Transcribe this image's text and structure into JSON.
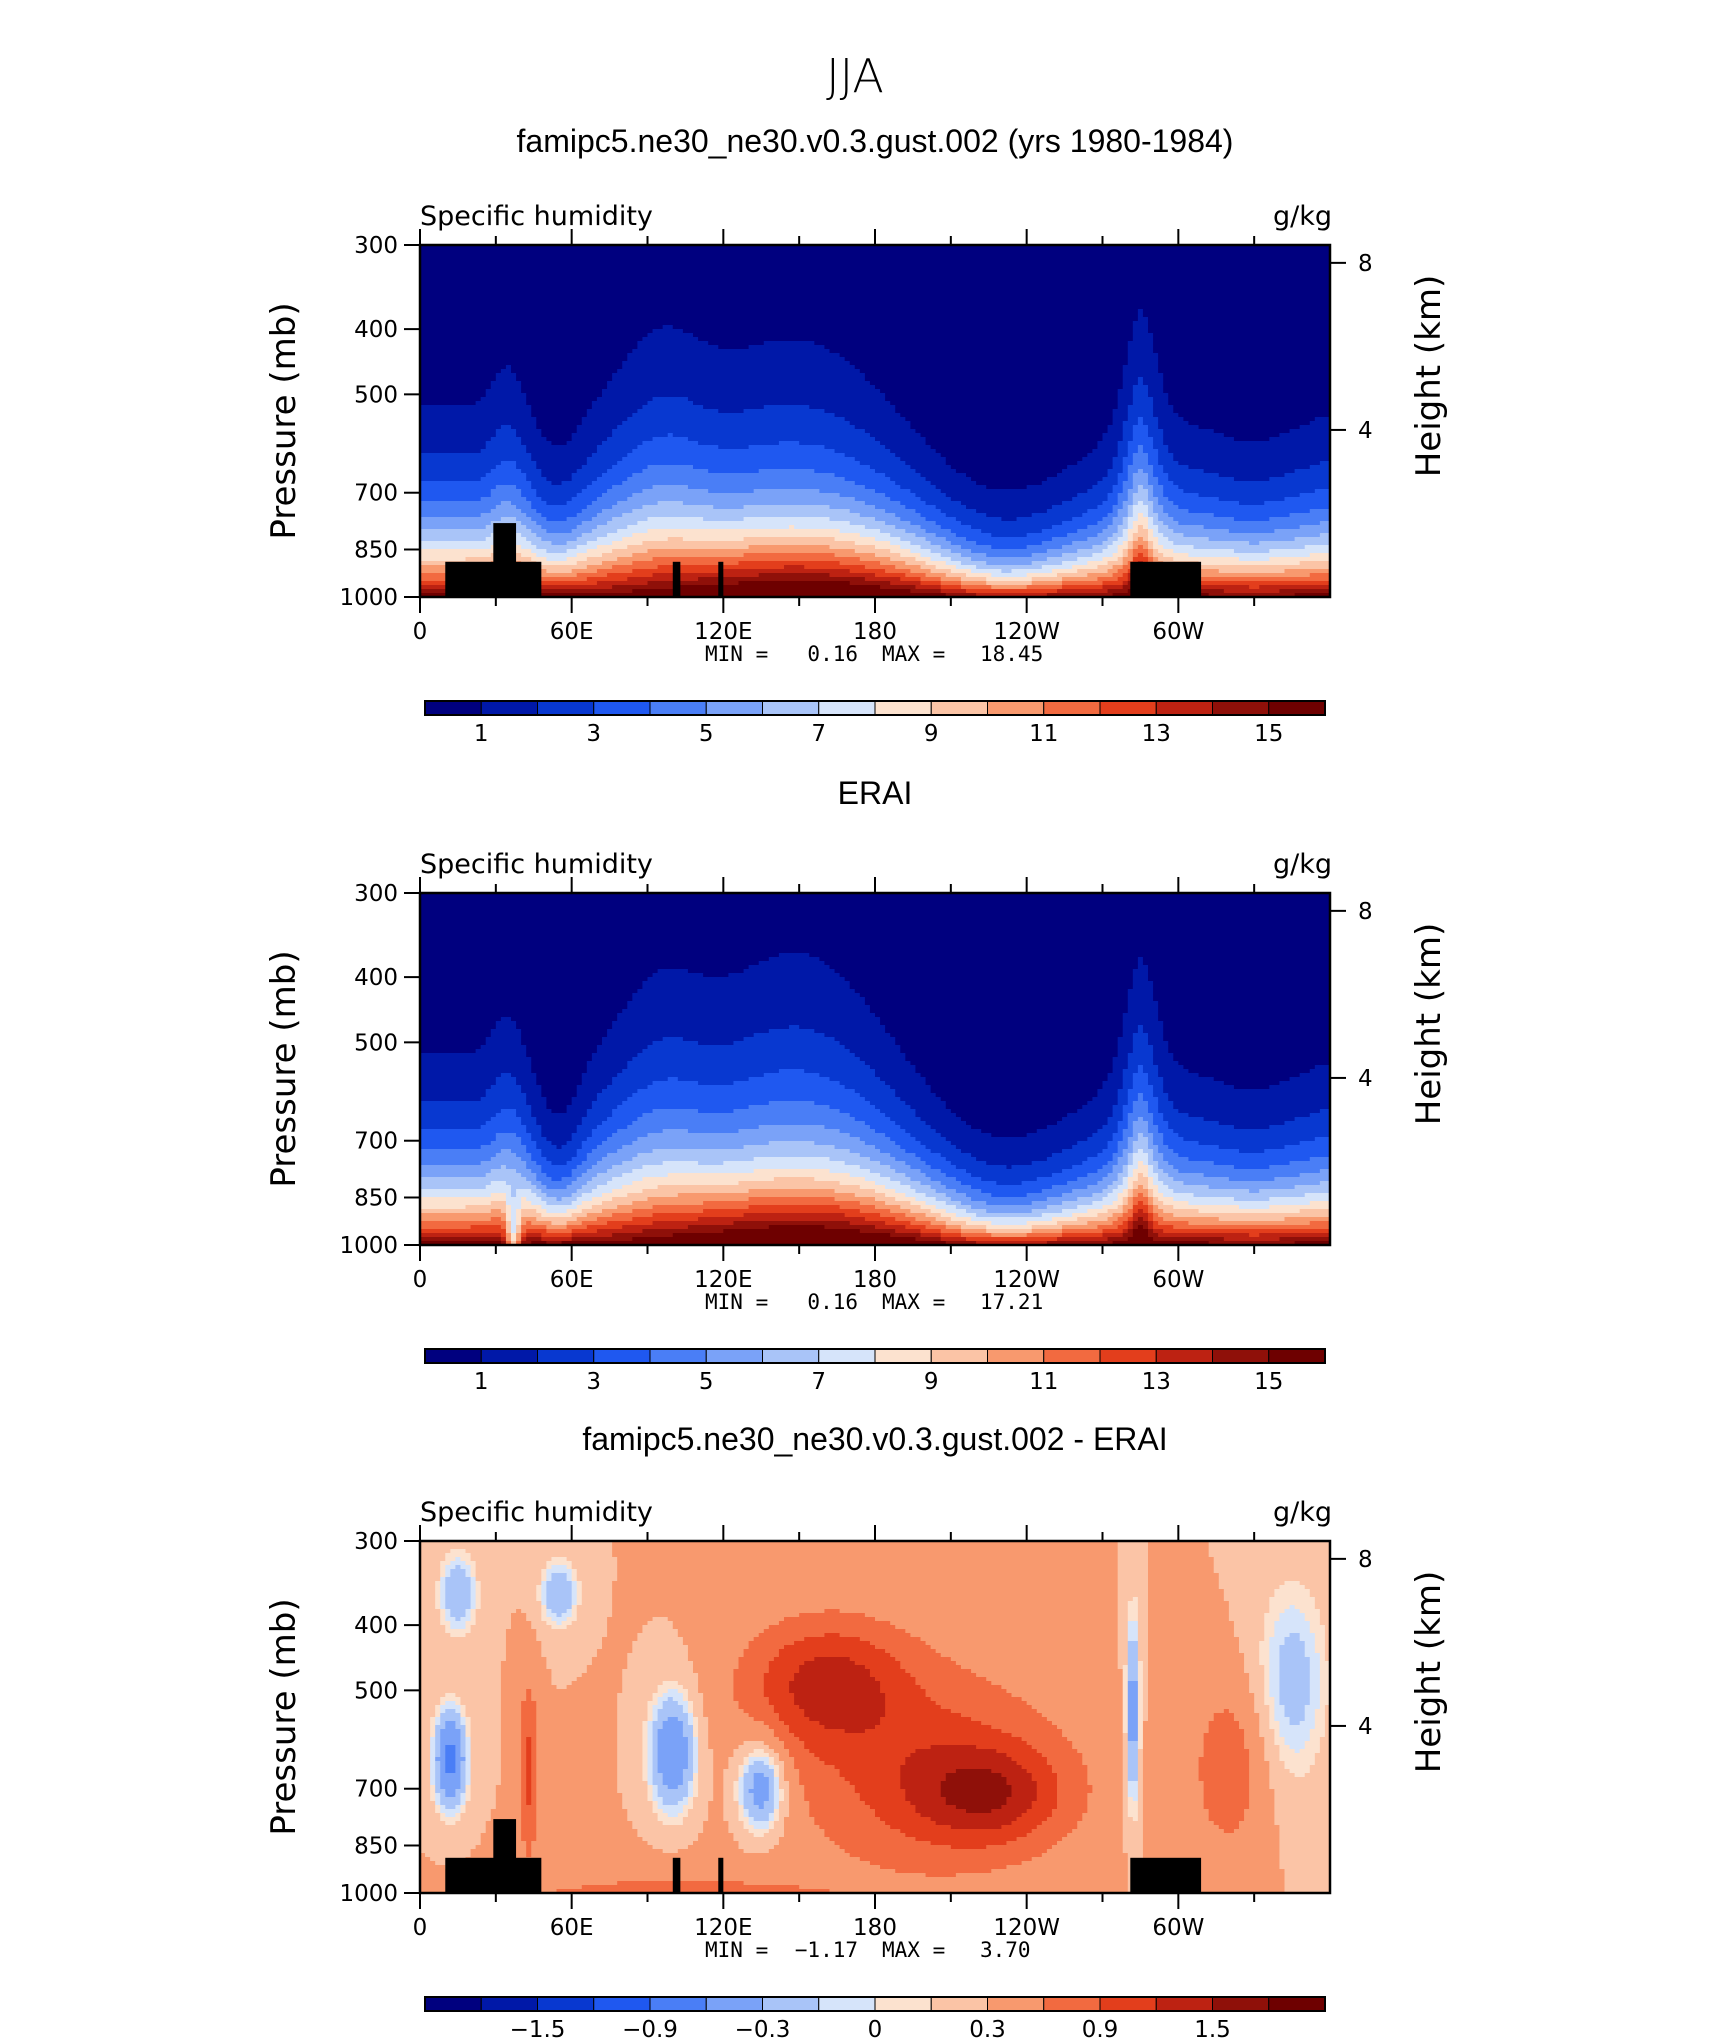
{
  "figure_title": "JJA",
  "chart_data": [
    {
      "type": "heatmap",
      "title": "famipc5.ne30_ne30.v0.3.gust.002 (yrs 1980-1984)",
      "left_string": "Specific humidity",
      "right_string": "g/kg",
      "ylabel": "Pressure (mb)",
      "ylabel_right": "Height (km)",
      "yticks": [
        "300",
        "400",
        "500",
        "700",
        "850",
        "1000"
      ],
      "yticks_right": [
        "8",
        "4"
      ],
      "xticks": [
        "0",
        "60E",
        "120E",
        "180",
        "120W",
        "60W"
      ],
      "min_label": "MIN =",
      "min_value": "0.16",
      "max_label": "MAX =",
      "max_value": "18.45",
      "colorbar_labels": [
        "1",
        "3",
        "5",
        "7",
        "9",
        "11",
        "13",
        "15"
      ],
      "colorbar_levels": [
        1,
        2,
        3,
        4,
        5,
        6,
        7,
        8,
        9,
        10,
        11,
        12,
        13,
        14,
        15
      ],
      "field": "model"
    },
    {
      "type": "heatmap",
      "title": "ERAI",
      "left_string": "Specific humidity",
      "right_string": "g/kg",
      "ylabel": "Pressure (mb)",
      "ylabel_right": "Height (km)",
      "yticks": [
        "300",
        "400",
        "500",
        "700",
        "850",
        "1000"
      ],
      "yticks_right": [
        "8",
        "4"
      ],
      "xticks": [
        "0",
        "60E",
        "120E",
        "180",
        "120W",
        "60W"
      ],
      "min_label": "MIN =",
      "min_value": "0.16",
      "max_label": "MAX =",
      "max_value": "17.21",
      "colorbar_labels": [
        "1",
        "3",
        "5",
        "7",
        "9",
        "11",
        "13",
        "15"
      ],
      "colorbar_levels": [
        1,
        2,
        3,
        4,
        5,
        6,
        7,
        8,
        9,
        10,
        11,
        12,
        13,
        14,
        15
      ],
      "field": "obs"
    },
    {
      "type": "heatmap",
      "title": "famipc5.ne30_ne30.v0.3.gust.002 - ERAI",
      "left_string": "Specific humidity",
      "right_string": "g/kg",
      "ylabel": "Pressure (mb)",
      "ylabel_right": "Height (km)",
      "yticks": [
        "300",
        "400",
        "500",
        "700",
        "850",
        "1000"
      ],
      "yticks_right": [
        "8",
        "4"
      ],
      "xticks": [
        "0",
        "60E",
        "120E",
        "180",
        "120W",
        "60W"
      ],
      "min_label": "MIN =",
      "min_value": "−1.17",
      "max_label": "MAX =",
      "max_value": "3.70",
      "colorbar_labels": [
        "−1.5",
        "−0.9",
        "−0.3",
        "0",
        "0.3",
        "0.9",
        "1.5"
      ],
      "colorbar_levels": [
        -1.8,
        -1.5,
        -1.2,
        -0.9,
        -0.6,
        -0.3,
        -0.1,
        0,
        0.1,
        0.3,
        0.6,
        0.9,
        1.2,
        1.5,
        1.8
      ],
      "field": "diff"
    }
  ],
  "colors": {
    "palette": [
      "#00007f",
      "#0018a8",
      "#0838d0",
      "#1f58f0",
      "#4a7ef6",
      "#7aa2f8",
      "#a9c4f8",
      "#d6e4fa",
      "#fce2cf",
      "#fbc4a6",
      "#f8996e",
      "#f26a40",
      "#e33e1c",
      "#bd2212",
      "#8f1009",
      "#6e0000"
    ],
    "topography": "#000000"
  }
}
